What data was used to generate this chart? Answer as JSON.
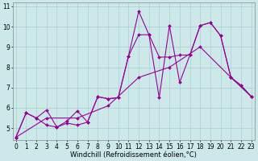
{
  "bg_color": "#cce8e8",
  "line_color": "#990099",
  "marker": "D",
  "marker_size": 2.0,
  "line_width": 0.8,
  "series": [
    [
      0,
      1,
      2,
      3,
      4,
      5,
      6,
      7,
      8,
      9,
      10,
      11,
      12,
      13,
      14,
      15,
      16,
      17,
      18,
      19,
      20,
      21,
      22,
      23
    ],
    [
      4.55,
      5.75,
      5.5,
      5.15,
      5.05,
      5.25,
      5.15,
      5.3,
      6.55,
      6.45,
      6.5,
      8.55,
      10.75,
      9.6,
      6.5,
      10.05,
      7.25,
      8.6,
      10.05,
      10.2,
      9.55,
      7.5,
      7.1,
      6.55
    ]
  ],
  "series2_x": [
    0,
    1,
    2,
    3,
    4,
    5,
    6,
    7,
    8,
    9,
    10,
    11,
    12,
    13,
    14,
    15,
    16,
    17,
    18,
    19,
    20,
    21,
    22,
    23
  ],
  "series2_y": [
    4.55,
    5.75,
    5.5,
    5.9,
    5.05,
    5.35,
    5.85,
    5.3,
    6.55,
    6.45,
    6.5,
    8.55,
    9.6,
    9.6,
    8.5,
    8.5,
    8.6,
    8.6,
    10.05,
    10.2,
    9.55,
    7.5,
    7.1,
    6.55
  ],
  "series3_x": [
    0,
    3,
    6,
    9,
    12,
    15,
    18,
    21,
    23
  ],
  "series3_y": [
    4.55,
    5.5,
    5.5,
    6.1,
    7.5,
    8.0,
    9.0,
    7.5,
    6.55
  ],
  "xlim": [
    -0.3,
    23.3
  ],
  "ylim": [
    4.4,
    11.2
  ],
  "xticks": [
    0,
    1,
    2,
    3,
    4,
    5,
    6,
    7,
    8,
    9,
    10,
    11,
    12,
    13,
    14,
    15,
    16,
    17,
    18,
    19,
    20,
    21,
    22,
    23
  ],
  "yticks": [
    5,
    6,
    7,
    8,
    9,
    10,
    11
  ],
  "xlabel": "Windchill (Refroidissement éolien,°C)",
  "grid_color": "#aacfcf",
  "tick_fontsize": 5.5,
  "label_fontsize": 6.0
}
